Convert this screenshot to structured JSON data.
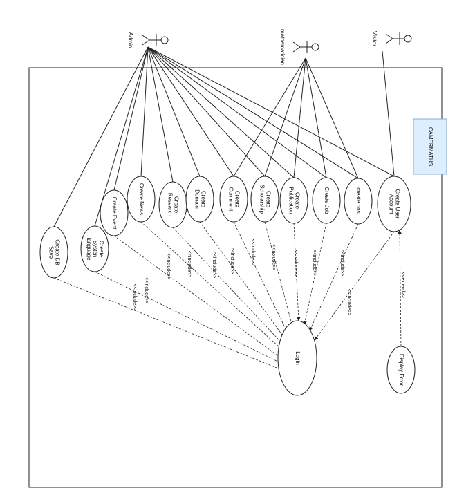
{
  "system": {
    "title": "CAMERMATHS"
  },
  "actors": [
    {
      "id": "admin",
      "label": "Admin"
    },
    {
      "id": "math",
      "label": "mathematician"
    },
    {
      "id": "visitor",
      "label": "Visitor"
    }
  ],
  "use_cases": [
    {
      "id": "db",
      "lines": [
        "Create DB",
        "Save"
      ]
    },
    {
      "id": "lang",
      "lines": [
        "Create",
        "Systen",
        "language"
      ]
    },
    {
      "id": "event",
      "lines": [
        "Create Event"
      ]
    },
    {
      "id": "news",
      "lines": [
        "Create News"
      ]
    },
    {
      "id": "res",
      "lines": [
        "Create",
        "Research"
      ]
    },
    {
      "id": "dom",
      "lines": [
        "Create",
        "Domain"
      ]
    },
    {
      "id": "comm",
      "lines": [
        "Create",
        "Comment"
      ]
    },
    {
      "id": "schol",
      "lines": [
        "Create",
        "Scholarship"
      ]
    },
    {
      "id": "pub",
      "lines": [
        "Create",
        "Publication"
      ]
    },
    {
      "id": "job",
      "lines": [
        "Create Job"
      ]
    },
    {
      "id": "post",
      "lines": [
        "create post"
      ]
    },
    {
      "id": "acc",
      "lines": [
        "Create User",
        "Account"
      ]
    },
    {
      "id": "login",
      "lines": [
        "Login"
      ]
    },
    {
      "id": "err",
      "lines": [
        "Display Error"
      ]
    }
  ],
  "relations": {
    "include_label": "<<include>>",
    "extend_label": "<<extend>>"
  },
  "colors": {
    "line": "#222222",
    "system_box_fill": "#ddeeff",
    "system_box_border": "#88aacc"
  }
}
